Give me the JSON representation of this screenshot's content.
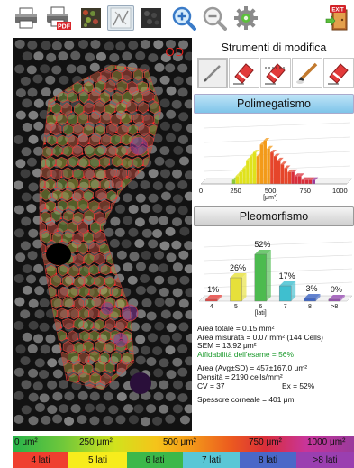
{
  "toolbar": {
    "buttons": [
      {
        "name": "print-button",
        "icon": "printer-icon"
      },
      {
        "name": "print-pdf-button",
        "icon": "pdf-printer-icon",
        "badge": "PDF"
      },
      {
        "name": "view-colored-cells-button",
        "icon": "colored-cells-icon"
      },
      {
        "name": "view-outline-button",
        "icon": "outline-icon"
      },
      {
        "name": "view-raw-image-button",
        "icon": "raw-image-icon"
      },
      {
        "name": "zoom-in-button",
        "icon": "zoom-in-icon"
      },
      {
        "name": "zoom-out-button",
        "icon": "zoom-out-icon"
      },
      {
        "name": "settings-button",
        "icon": "gear-icon"
      },
      {
        "name": "exit-button",
        "icon": "exit-door-icon",
        "badge": "EXIT"
      }
    ]
  },
  "image": {
    "eye_label": "OD"
  },
  "tools": {
    "title": "Strumenti di modifica",
    "items": [
      "pencil-tool",
      "eraser-red-tool",
      "eraser-hatched-tool",
      "brush-tool",
      "eraser-red-alt-tool"
    ]
  },
  "polimegatismo": {
    "title": "Polimegatismo",
    "tick_labels": [
      "0",
      "250",
      "500",
      "750",
      "1000"
    ],
    "unit": "[μm²]"
  },
  "pleomorfismo": {
    "title": "Pleomorfismo",
    "unit": "[lati]"
  },
  "chart_data": [
    {
      "type": "bar",
      "title": "Polimegatismo",
      "xlabel": "[μm²]",
      "x_ticks": [
        0,
        250,
        500,
        750,
        1000
      ],
      "xlim": [
        0,
        1050
      ],
      "bin_width": 25,
      "bin_starts": [
        225,
        250,
        275,
        300,
        325,
        350,
        375,
        400,
        425,
        450,
        475,
        500,
        525,
        550,
        575,
        600,
        625,
        650,
        675,
        700,
        725,
        750,
        775,
        800
      ],
      "values": [
        1,
        2,
        3,
        4,
        6,
        7,
        8,
        7,
        10,
        11,
        9,
        8,
        7,
        6,
        5,
        4,
        3,
        3,
        2,
        2,
        1,
        1,
        1,
        1
      ]
    },
    {
      "type": "bar",
      "title": "Pleomorfismo",
      "xlabel": "[lati]",
      "categories": [
        "4",
        "5",
        "6",
        "7",
        "8",
        ">8"
      ],
      "values": [
        1,
        26,
        52,
        17,
        3,
        0
      ],
      "value_labels": [
        "1%",
        "26%",
        "52%",
        "17%",
        "3%",
        "0%"
      ],
      "colors": [
        "#e8433f",
        "#e6e03a",
        "#4cbb4f",
        "#3fbfcf",
        "#3f66c6",
        "#9a4fb5"
      ]
    }
  ],
  "stats": {
    "area_totale": "Area totale = 0.15 mm²",
    "area_misurata": "Area misurata = 0.07 mm² (144 Cells)",
    "sem": "SEM = 13.92 μm²",
    "affidabilita": "Affidabilità dell'esame = 56%",
    "area_avg": "Area (Avg±SD) = 457±167.0 μm²",
    "densita": "Densità = 2190 cells/mm²",
    "cv": "CV = 37",
    "ex": "Ex = 52%",
    "spessore": "Spessore corneale = 401 μm"
  },
  "legend_area": {
    "labels": [
      "0 μm²",
      "250 μm²",
      "500 μm²",
      "750 μm²",
      "1000 μm²"
    ]
  },
  "legend_sides": {
    "items": [
      {
        "label": "4 lati",
        "color": "#ef3f2f"
      },
      {
        "label": "5 lati",
        "color": "#f7ec1c"
      },
      {
        "label": "6 lati",
        "color": "#3cb84a"
      },
      {
        "label": "7 lati",
        "color": "#59c7d6"
      },
      {
        "label": "8 lati",
        "color": "#4a68c8"
      },
      {
        "label": ">8 lati",
        "color": "#9a3fb0"
      }
    ]
  }
}
